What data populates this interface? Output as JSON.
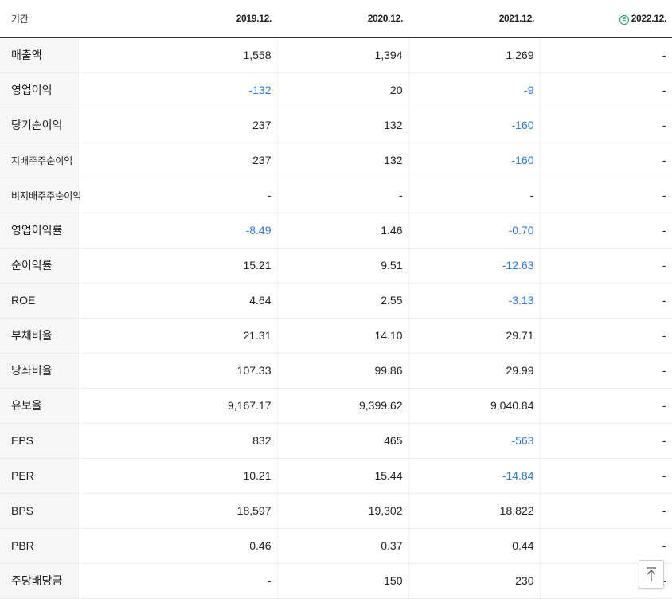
{
  "header": {
    "period_label": "기간",
    "estimate_mark": "E",
    "columns": [
      "2019.12.",
      "2020.12.",
      "2021.12.",
      "2022.12."
    ]
  },
  "colors": {
    "negative": "#2b7ad8",
    "estimate": "#1aa260"
  },
  "rows": [
    {
      "label": "매출액",
      "values": [
        "1,558",
        "1,394",
        "1,269",
        "-"
      ]
    },
    {
      "label": "영업이익",
      "values": [
        "-132",
        "20",
        "-9",
        "-"
      ]
    },
    {
      "label": "당기순이익",
      "values": [
        "237",
        "132",
        "-160",
        "-"
      ]
    },
    {
      "label": "지배주주순이익",
      "values": [
        "237",
        "132",
        "-160",
        "-"
      ]
    },
    {
      "label": "비지배주주순이익",
      "values": [
        "-",
        "-",
        "-",
        "-"
      ]
    },
    {
      "label": "영업이익률",
      "values": [
        "-8.49",
        "1.46",
        "-0.70",
        "-"
      ]
    },
    {
      "label": "순이익률",
      "values": [
        "15.21",
        "9.51",
        "-12.63",
        "-"
      ]
    },
    {
      "label": "ROE",
      "values": [
        "4.64",
        "2.55",
        "-3.13",
        "-"
      ]
    },
    {
      "label": "부채비율",
      "values": [
        "21.31",
        "14.10",
        "29.71",
        "-"
      ]
    },
    {
      "label": "당좌비율",
      "values": [
        "107.33",
        "99.86",
        "29.99",
        "-"
      ]
    },
    {
      "label": "유보율",
      "values": [
        "9,167.17",
        "9,399.62",
        "9,040.84",
        "-"
      ]
    },
    {
      "label": "EPS",
      "values": [
        "832",
        "465",
        "-563",
        "-"
      ]
    },
    {
      "label": "PER",
      "values": [
        "10.21",
        "15.44",
        "-14.84",
        "-"
      ]
    },
    {
      "label": "BPS",
      "values": [
        "18,597",
        "19,302",
        "18,822",
        "-"
      ]
    },
    {
      "label": "PBR",
      "values": [
        "0.46",
        "0.37",
        "0.44",
        "-"
      ]
    },
    {
      "label": "주당배당금",
      "values": [
        "-",
        "150",
        "230",
        "-"
      ]
    }
  ]
}
